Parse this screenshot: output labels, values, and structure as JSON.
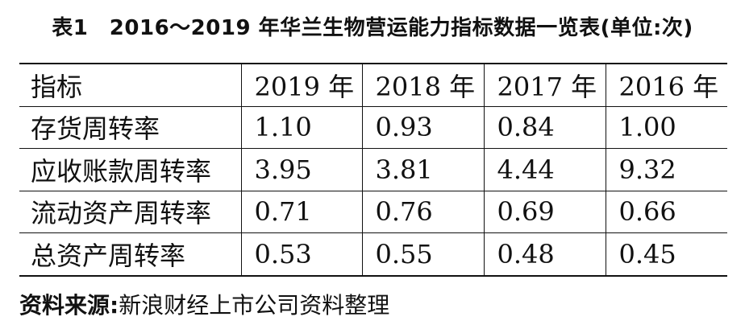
{
  "title": "表1　2016～2019 年华兰生物营运能力指标数据一览表(单位:次)",
  "table": {
    "header": [
      "指标",
      "2019 年",
      "2018 年",
      "2017 年",
      "2016 年"
    ],
    "rows": [
      [
        "存货周转率",
        "1.10",
        "0.93",
        "0.84",
        "1.00"
      ],
      [
        "应收账款周转率",
        "3.95",
        "3.81",
        "4.44",
        "9.32"
      ],
      [
        "流动资产周转率",
        "0.71",
        "0.76",
        "0.69",
        "0.66"
      ],
      [
        "总资产周转率",
        "0.53",
        "0.55",
        "0.48",
        "0.45"
      ]
    ]
  },
  "source": {
    "label": "资料来源:",
    "text": "新浪财经上市公司资料整理"
  }
}
